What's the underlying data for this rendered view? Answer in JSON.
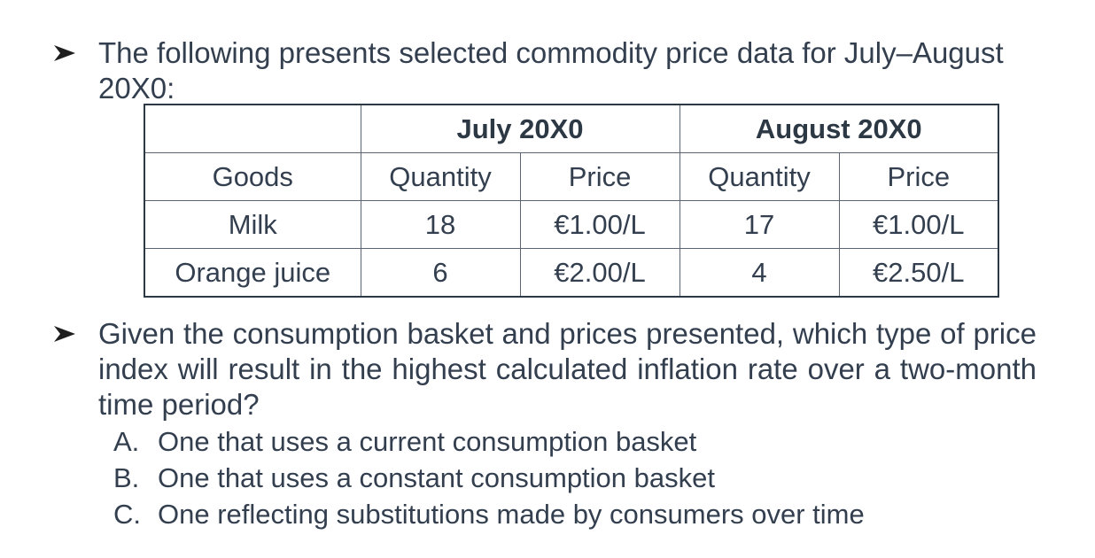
{
  "intro": {
    "line1": "The following presents selected commodity price data for July–August",
    "line2": "20X0:"
  },
  "table": {
    "group_headers": [
      "July 20X0",
      "August 20X0"
    ],
    "col_headers": [
      "Goods",
      "Quantity",
      "Price",
      "Quantity",
      "Price"
    ],
    "rows": [
      [
        "Milk",
        "18",
        "€1.00/L",
        "17",
        "€1.00/L"
      ],
      [
        "Orange juice",
        "6",
        "€2.00/L",
        "4",
        "€2.50/L"
      ]
    ]
  },
  "question": {
    "text": "Given the consumption basket and prices presented, which type of price index will result in the highest calculated inflation rate over a two-month time period?"
  },
  "options": [
    {
      "letter": "A.",
      "text": "One that uses a current consumption basket"
    },
    {
      "letter": "B.",
      "text": "One that uses a constant consumption basket"
    },
    {
      "letter": "C.",
      "text": "One reflecting substitutions made by consumers over time"
    }
  ]
}
